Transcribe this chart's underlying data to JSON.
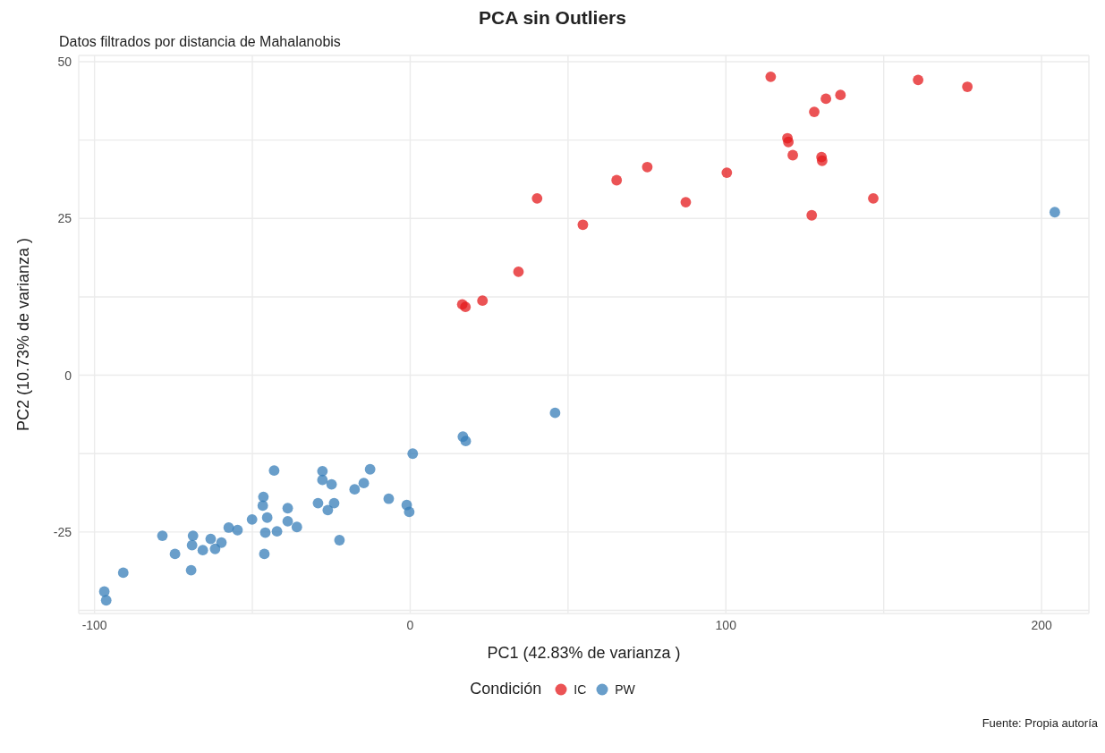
{
  "chart_data": {
    "type": "scatter",
    "title": "PCA sin Outliers",
    "subtitle": "Datos filtrados por distancia de Mahalanobis",
    "xlabel": "PC1 (42.83% de varianza )",
    "ylabel": "PC2 (10.73% de varianza )",
    "legend_title": "Condición",
    "annotations": [
      "Fuente: Propia autoría"
    ],
    "xlim": [
      -105,
      215
    ],
    "ylim": [
      -38,
      51
    ],
    "xticks": [
      -100,
      {
        "value": -50,
        "label": null
      },
      0,
      {
        "value": 50,
        "label": null
      },
      100,
      {
        "value": 150,
        "label": null
      },
      200
    ],
    "yticks": [
      {
        "value": -37.5,
        "label": null
      },
      -25,
      {
        "value": -12.5,
        "label": null
      },
      0,
      {
        "value": 12.5,
        "label": null
      },
      25,
      {
        "value": 37.5,
        "label": null
      },
      50
    ],
    "grid": true,
    "legend": "bottom",
    "marker": "circle",
    "series": [
      {
        "name": "IC",
        "color": "#e41a1c",
        "x": [
          16.5,
          17.5,
          22.9,
          34.3,
          40.2,
          54.7,
          65.4,
          75.1,
          87.3,
          100.3,
          114.2,
          119.5,
          119.8,
          121.2,
          128,
          127.2,
          130.3,
          130.5,
          131.7,
          136.3,
          146.7,
          160.9,
          176.5
        ],
        "values": [
          11.3,
          10.9,
          11.9,
          16.5,
          28.2,
          24.0,
          31.1,
          33.2,
          27.6,
          32.3,
          47.6,
          37.8,
          37.2,
          35.1,
          42.0,
          25.5,
          34.8,
          34.2,
          44.1,
          44.7,
          28.2,
          47.1,
          46.0
        ]
      },
      {
        "name": "PW",
        "color": "#377eb8",
        "x": [
          -96.9,
          -96.3,
          -90.9,
          -78.5,
          -74.5,
          -69.4,
          -68.8,
          -69.1,
          -65.7,
          -63.2,
          -61.8,
          -59.8,
          -57.5,
          -54.7,
          -50.1,
          -46.5,
          -46.7,
          -45.3,
          -45.9,
          -46.2,
          -43.1,
          -42.2,
          -38.8,
          -38.8,
          -35.9,
          -27.8,
          -27.8,
          -29.2,
          -24.9,
          -26.1,
          -24.1,
          -22.4,
          -17.6,
          -14.7,
          -12.7,
          -6.8,
          -1.1,
          -0.3,
          0.8,
          16.7,
          17.6,
          45.9,
          204.2
        ],
        "values": [
          -34.5,
          -35.9,
          -31.5,
          -25.6,
          -28.5,
          -31.1,
          -25.6,
          -27.1,
          -27.9,
          -26.1,
          -27.7,
          -26.7,
          -24.3,
          -24.7,
          -23.0,
          -19.4,
          -20.8,
          -22.7,
          -25.1,
          -28.5,
          -15.2,
          -24.9,
          -21.2,
          -23.3,
          -24.2,
          -15.3,
          -16.7,
          -20.4,
          -17.4,
          -21.5,
          -20.4,
          -26.3,
          -18.2,
          -17.2,
          -15.0,
          -19.7,
          -20.7,
          -21.8,
          -12.5,
          -9.8,
          -10.5,
          -6.0,
          26.0
        ]
      }
    ]
  }
}
